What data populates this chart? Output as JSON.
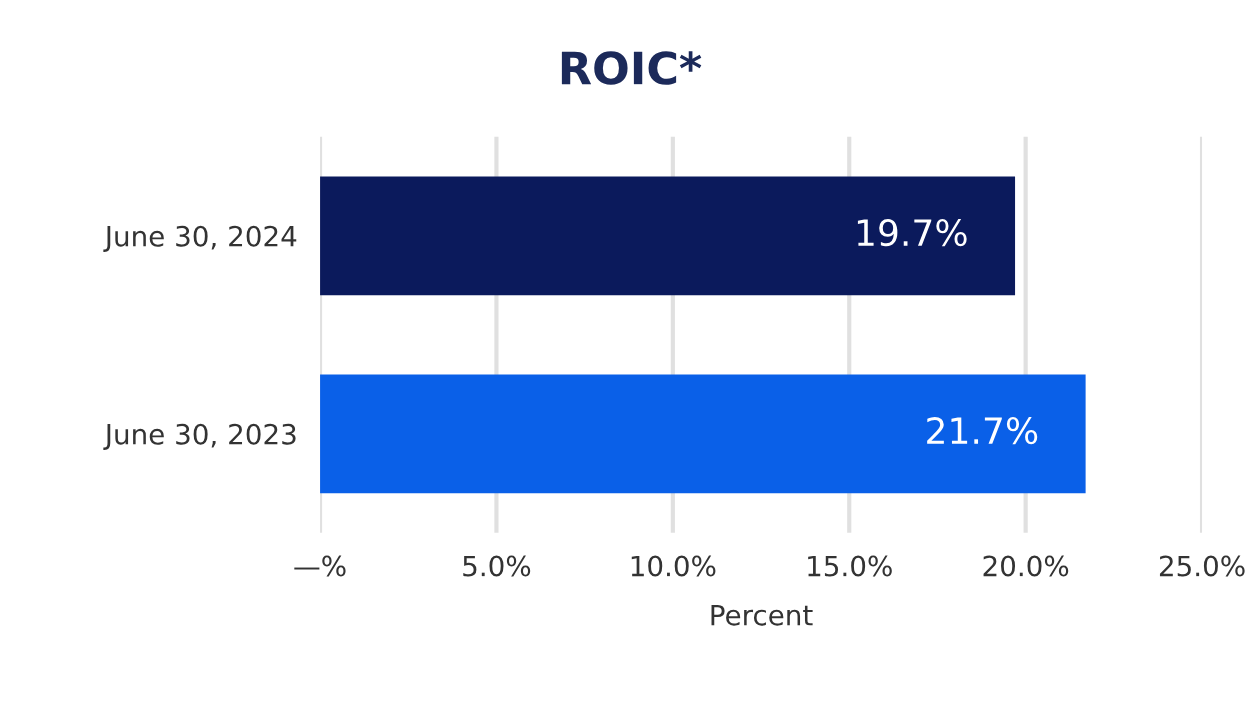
{
  "chart_data": {
    "type": "bar",
    "orientation": "horizontal",
    "title": "ROIC*",
    "xlabel": "Percent",
    "categories": [
      "June 30, 2024",
      "June 30, 2023"
    ],
    "values": [
      19.7,
      21.7
    ],
    "colors": [
      "#0b1a5c",
      "#0a60e8"
    ],
    "value_labels": [
      "19.7%",
      "21.7%"
    ],
    "xlim": [
      0,
      25
    ],
    "xticks": [
      {
        "value": 0,
        "label": "—%"
      },
      {
        "value": 5,
        "label": "5.0%"
      },
      {
        "value": 10,
        "label": "10.0%"
      },
      {
        "value": 15,
        "label": "15.0%"
      },
      {
        "value": 20,
        "label": "20.0%"
      },
      {
        "value": 25,
        "label": "25.0%"
      }
    ],
    "grid": "x",
    "legend": false
  }
}
